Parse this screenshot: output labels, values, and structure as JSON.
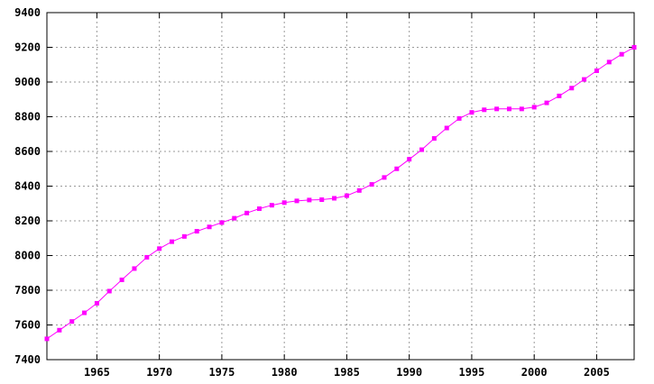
{
  "chart_data": {
    "type": "line",
    "title": "",
    "xlabel": "",
    "ylabel": "",
    "xlim": [
      1961,
      2008
    ],
    "ylim": [
      7400,
      9400
    ],
    "grid": true,
    "legend": "none",
    "x_ticks": [
      1965,
      1970,
      1975,
      1980,
      1985,
      1990,
      1995,
      2000,
      2005
    ],
    "x_tick_labels": [
      "1965",
      "1970",
      "1975",
      "1980",
      "1985",
      "1990",
      "1995",
      "2000",
      "2005"
    ],
    "y_ticks": [
      7400,
      7600,
      7800,
      8000,
      8200,
      8400,
      8600,
      8800,
      9000,
      9200,
      9400
    ],
    "y_tick_labels": [
      "7400",
      "7600",
      "7800",
      "8000",
      "8200",
      "8400",
      "8600",
      "8800",
      "9000",
      "9200",
      "9400"
    ],
    "series": [
      {
        "color": "#ff00ff",
        "marker": "square",
        "x": [
          1961,
          1962,
          1963,
          1964,
          1965,
          1966,
          1967,
          1968,
          1969,
          1970,
          1971,
          1972,
          1973,
          1974,
          1975,
          1976,
          1977,
          1978,
          1979,
          1980,
          1981,
          1982,
          1983,
          1984,
          1985,
          1986,
          1987,
          1988,
          1989,
          1990,
          1991,
          1992,
          1993,
          1994,
          1995,
          1996,
          1997,
          1998,
          1999,
          2000,
          2001,
          2002,
          2003,
          2004,
          2005,
          2006,
          2007,
          2008
        ],
        "y": [
          7520,
          7570,
          7620,
          7670,
          7725,
          7795,
          7860,
          7925,
          7990,
          8040,
          8080,
          8110,
          8140,
          8165,
          8190,
          8215,
          8245,
          8270,
          8290,
          8305,
          8315,
          8320,
          8322,
          8330,
          8345,
          8375,
          8410,
          8450,
          8500,
          8555,
          8610,
          8675,
          8735,
          8790,
          8825,
          8840,
          8845,
          8845,
          8845,
          8855,
          8880,
          8920,
          8965,
          9015,
          9065,
          9115,
          9160,
          9200
        ]
      }
    ]
  }
}
